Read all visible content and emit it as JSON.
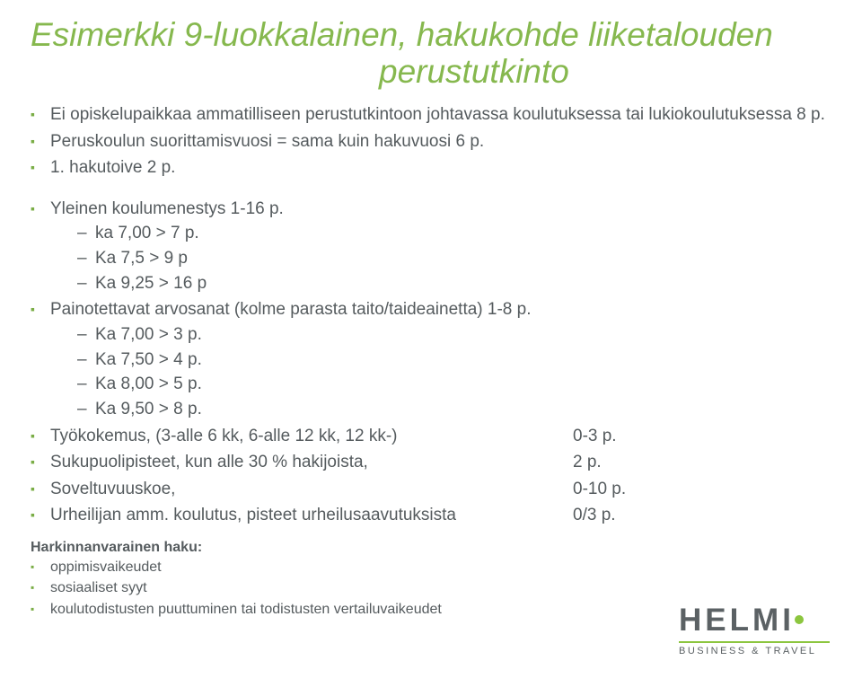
{
  "colors": {
    "title": "#86b84e",
    "body": "#555b5e",
    "bulletMain": "#7aad46",
    "bulletFoot": "#7aad46",
    "logoText": "#5b6164",
    "logoDot": "#8cc63f",
    "logoRule": "#8cc63f",
    "logoSub": "#5b6164"
  },
  "typography": {
    "titleSize": 37,
    "bodySize": 19,
    "footSize": 16
  },
  "title": {
    "line1": "Esimerkki 9-luokkalainen, hakukohde liiketalouden",
    "line2": "perustutkinto"
  },
  "items": [
    {
      "text": "Ei opiskelupaikkaa ammatilliseen perustutkintoon johtavassa koulutuksessa tai lukiokoulutuksessa 8 p."
    },
    {
      "text": "Peruskoulun suorittamisvuosi = sama kuin hakuvuosi 6 p."
    },
    {
      "text": "1. hakutoive 2 p."
    },
    {
      "type": "spacer"
    },
    {
      "text": "Yleinen koulumenestys 1-16 p.",
      "sub": [
        "ka 7,00 > 7 p.",
        "Ka 7,5 > 9 p",
        "Ka 9,25 > 16 p"
      ]
    },
    {
      "text": "Painotettavat arvosanat (kolme parasta taito/taideainetta) 1-8 p.",
      "sub": [
        "Ka 7,00 > 3 p.",
        "Ka 7,50 > 4 p.",
        "Ka 8,00 > 5 p.",
        "Ka 9,50 > 8 p."
      ]
    },
    {
      "text": "Työkokemus, (3-alle 6 kk, 6-alle 12 kk, 12 kk-)",
      "value": "0-3 p."
    },
    {
      "text": "Sukupuolipisteet, kun alle 30 % hakijoista,",
      "value": "2 p."
    },
    {
      "text": "Soveltuvuuskoe,",
      "value": "0-10 p."
    },
    {
      "text": "Urheilijan amm. koulutus, pisteet urheilusaavutuksista",
      "value": "0/3 p."
    }
  ],
  "footnote": {
    "heading": "Harkinnanvarainen haku:",
    "items": [
      "oppimisvaikeudet",
      "sosiaaliset syyt",
      "koulutodistusten puuttuminen tai todistusten vertailuvaikeudet"
    ]
  },
  "logo": {
    "name": "HELMI",
    "sub": "BUSINESS & TRAVEL"
  }
}
